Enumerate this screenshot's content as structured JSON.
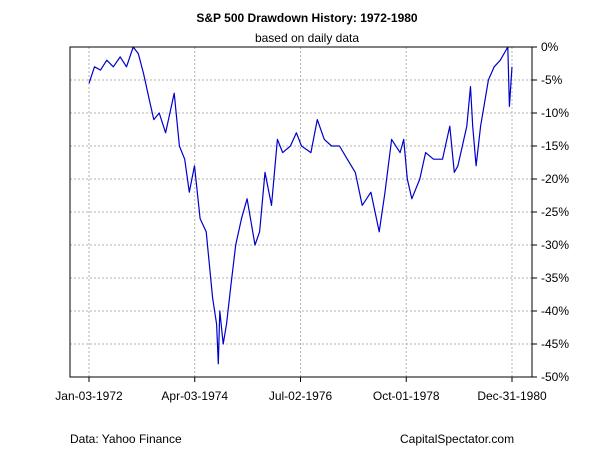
{
  "chart_data": {
    "type": "line",
    "title": "S&P 500 Drawdown History: 1972-1980",
    "subtitle": "based on daily data",
    "xlabel": "",
    "ylabel": "",
    "x_tick_labels": [
      "Jan-03-1972",
      "Apr-03-1974",
      "Jul-02-1976",
      "Oct-01-1978",
      "Dec-31-1980"
    ],
    "y_ticks": [
      0,
      -5,
      -10,
      -15,
      -20,
      -25,
      -30,
      -35,
      -40,
      -45,
      -50
    ],
    "y_tick_labels": [
      "0%",
      "-5%",
      "-10%",
      "-15%",
      "-20%",
      "-25%",
      "-30%",
      "-35%",
      "-40%",
      "-45%",
      "-50%"
    ],
    "xlim": [
      "1972-01-03",
      "1980-12-31"
    ],
    "ylim": [
      -50,
      0
    ],
    "grid": true,
    "legend": "none",
    "line_color": "#0000cc",
    "series": [
      {
        "values_unit": "percent drawdown",
        "x": [
          "1972-01-03",
          "1972-02-15",
          "1972-04-01",
          "1972-05-20",
          "1972-07-10",
          "1972-09-01",
          "1972-10-20",
          "1972-12-11",
          "1973-01-20",
          "1973-03-01",
          "1973-04-15",
          "1973-05-20",
          "1973-07-01",
          "1973-08-20",
          "1973-10-26",
          "1973-12-05",
          "1974-01-15",
          "1974-02-20",
          "1974-04-01",
          "1974-05-15",
          "1974-07-01",
          "1974-08-20",
          "1974-09-20",
          "1974-10-03",
          "1974-10-15",
          "1974-11-10",
          "1974-12-06",
          "1975-01-10",
          "1975-02-15",
          "1975-04-01",
          "1975-05-15",
          "1975-07-15",
          "1975-08-20",
          "1975-10-01",
          "1975-11-20",
          "1976-01-05",
          "1976-02-15",
          "1976-04-15",
          "1976-06-01",
          "1976-07-10",
          "1976-09-21",
          "1976-11-10",
          "1977-01-03",
          "1977-03-01",
          "1977-05-01",
          "1977-07-01",
          "1977-09-01",
          "1977-10-25",
          "1977-12-31",
          "1978-03-06",
          "1978-04-20",
          "1978-06-10",
          "1978-08-15",
          "1978-09-12",
          "1978-10-10",
          "1978-11-14",
          "1979-01-15",
          "1979-03-01",
          "1979-05-01",
          "1979-07-10",
          "1979-09-05",
          "1979-10-10",
          "1979-11-07",
          "1980-01-15",
          "1980-02-13",
          "1980-03-01",
          "1980-03-27",
          "1980-05-01",
          "1980-07-01",
          "1980-08-15",
          "1980-10-01",
          "1980-11-28",
          "1980-12-11",
          "1980-12-31"
        ],
        "values": [
          -5.5,
          -3,
          -3.5,
          -2,
          -3,
          -1.5,
          -3,
          0,
          -1,
          -4,
          -8,
          -11,
          -10,
          -13,
          -7,
          -15,
          -17,
          -22,
          -18,
          -26,
          -28,
          -38,
          -42,
          -48,
          -40,
          -45,
          -42,
          -36,
          -30,
          -26,
          -23,
          -30,
          -28,
          -19,
          -24,
          -14,
          -16,
          -15,
          -13,
          -15,
          -16,
          -11,
          -14,
          -15,
          -15,
          -17,
          -19,
          -24,
          -22,
          -28,
          -22,
          -14,
          -16,
          -14,
          -20,
          -23,
          -20,
          -16,
          -17,
          -17,
          -12,
          -19,
          -18,
          -12,
          -6,
          -12,
          -18,
          -12,
          -5,
          -3,
          -2,
          0,
          -9,
          -3
        ]
      }
    ]
  },
  "footer": {
    "source": "Data: Yahoo Finance",
    "site": "CapitalSpectator.com"
  }
}
